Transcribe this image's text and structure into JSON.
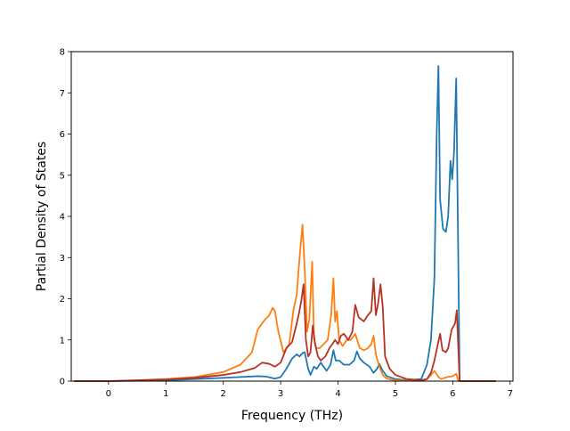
{
  "chart_data": {
    "type": "line",
    "title": "",
    "xlabel": "Frequency (THz)",
    "ylabel": "Partial Density of States",
    "xlim": [
      -0.65,
      7.05
    ],
    "ylim": [
      0,
      8
    ],
    "xticks": [
      0,
      1,
      2,
      3,
      4,
      5,
      6,
      7
    ],
    "yticks": [
      0,
      1,
      2,
      3,
      4,
      5,
      6,
      7,
      8
    ],
    "grid": false,
    "legend": "none",
    "series": [
      {
        "color": "#1f77b4",
        "x": [
          -0.6,
          0.0,
          0.5,
          1.0,
          1.5,
          2.0,
          2.3,
          2.6,
          2.75,
          2.9,
          3.0,
          3.1,
          3.2,
          3.28,
          3.33,
          3.38,
          3.42,
          3.48,
          3.52,
          3.58,
          3.63,
          3.7,
          3.8,
          3.87,
          3.92,
          3.96,
          4.02,
          4.1,
          4.2,
          4.28,
          4.33,
          4.38,
          4.45,
          4.55,
          4.62,
          4.68,
          4.72,
          4.78,
          4.85,
          5.0,
          5.2,
          5.45,
          5.55,
          5.62,
          5.68,
          5.72,
          5.75,
          5.78,
          5.83,
          5.88,
          5.92,
          5.96,
          5.99,
          6.02,
          6.06,
          6.1,
          6.12,
          6.2,
          6.75
        ],
        "y": [
          0.0,
          0.0,
          0.01,
          0.02,
          0.05,
          0.08,
          0.1,
          0.12,
          0.11,
          0.06,
          0.1,
          0.3,
          0.55,
          0.65,
          0.6,
          0.68,
          0.7,
          0.3,
          0.15,
          0.35,
          0.3,
          0.45,
          0.25,
          0.4,
          0.75,
          0.5,
          0.5,
          0.4,
          0.4,
          0.5,
          0.72,
          0.55,
          0.45,
          0.35,
          0.2,
          0.3,
          0.42,
          0.25,
          0.12,
          0.05,
          0.02,
          0.05,
          0.4,
          1.0,
          2.5,
          6.0,
          7.65,
          4.4,
          3.7,
          3.62,
          4.0,
          5.35,
          4.9,
          5.5,
          7.35,
          2.5,
          0.0,
          0.0,
          0.0
        ]
      },
      {
        "color": "#ff7f0e",
        "x": [
          -0.6,
          0.0,
          0.5,
          1.0,
          1.5,
          2.0,
          2.3,
          2.5,
          2.6,
          2.7,
          2.8,
          2.86,
          2.9,
          2.96,
          3.05,
          3.15,
          3.22,
          3.28,
          3.33,
          3.38,
          3.42,
          3.46,
          3.5,
          3.55,
          3.58,
          3.62,
          3.68,
          3.75,
          3.82,
          3.88,
          3.92,
          3.95,
          3.98,
          4.02,
          4.08,
          4.15,
          4.22,
          4.3,
          4.38,
          4.45,
          4.52,
          4.58,
          4.62,
          4.66,
          4.72,
          4.78,
          4.85,
          5.0,
          5.2,
          5.45,
          5.55,
          5.62,
          5.68,
          5.75,
          5.8,
          5.9,
          6.0,
          6.06,
          6.1,
          6.2,
          6.75
        ],
        "y": [
          0.0,
          0.0,
          0.02,
          0.05,
          0.1,
          0.22,
          0.4,
          0.7,
          1.25,
          1.45,
          1.6,
          1.78,
          1.7,
          1.2,
          0.7,
          0.9,
          1.7,
          2.1,
          3.0,
          3.8,
          2.7,
          1.2,
          1.5,
          2.9,
          1.05,
          0.8,
          0.8,
          0.9,
          1.0,
          1.6,
          2.5,
          1.45,
          1.7,
          1.0,
          0.85,
          1.0,
          1.0,
          1.15,
          0.8,
          0.75,
          0.8,
          0.9,
          1.1,
          0.65,
          0.35,
          0.15,
          0.06,
          0.02,
          0.01,
          0.02,
          0.05,
          0.15,
          0.25,
          0.1,
          0.05,
          0.1,
          0.12,
          0.18,
          0.0,
          0.0,
          0.0
        ]
      },
      {
        "color": "#b73124",
        "x": [
          -0.6,
          0.0,
          0.5,
          1.0,
          1.5,
          2.0,
          2.3,
          2.55,
          2.68,
          2.8,
          2.9,
          3.0,
          3.1,
          3.2,
          3.28,
          3.32,
          3.36,
          3.4,
          3.44,
          3.48,
          3.52,
          3.56,
          3.6,
          3.65,
          3.7,
          3.78,
          3.85,
          3.9,
          3.95,
          4.0,
          4.05,
          4.1,
          4.18,
          4.25,
          4.3,
          4.36,
          4.45,
          4.52,
          4.58,
          4.62,
          4.66,
          4.7,
          4.74,
          4.78,
          4.82,
          4.9,
          5.0,
          5.2,
          5.45,
          5.55,
          5.62,
          5.68,
          5.74,
          5.78,
          5.82,
          5.88,
          5.92,
          5.98,
          6.04,
          6.07,
          6.12,
          6.2,
          6.75
        ],
        "y": [
          0.0,
          0.0,
          0.02,
          0.04,
          0.08,
          0.15,
          0.22,
          0.32,
          0.45,
          0.42,
          0.35,
          0.45,
          0.8,
          0.95,
          1.4,
          1.65,
          1.95,
          2.35,
          1.0,
          0.6,
          0.7,
          1.35,
          0.9,
          0.6,
          0.5,
          0.6,
          0.8,
          0.9,
          1.0,
          0.9,
          1.1,
          1.15,
          1.0,
          1.2,
          1.85,
          1.55,
          1.45,
          1.6,
          1.7,
          2.5,
          1.6,
          1.9,
          2.35,
          1.8,
          0.6,
          0.3,
          0.15,
          0.05,
          0.02,
          0.05,
          0.2,
          0.5,
          0.9,
          1.15,
          0.75,
          0.7,
          0.8,
          1.25,
          1.4,
          1.72,
          0.0,
          0.0,
          0.0
        ]
      }
    ]
  }
}
